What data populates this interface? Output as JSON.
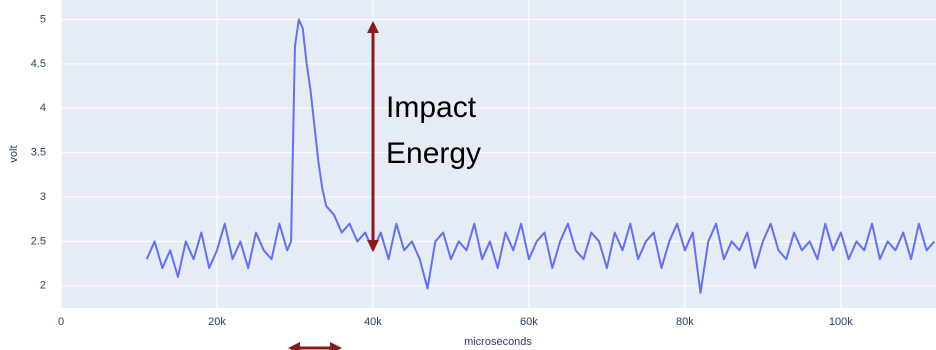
{
  "chart_data": {
    "type": "line",
    "xlabel": "microseconds",
    "ylabel": "volt",
    "annotation_lines": [
      "Impact",
      "Energy"
    ],
    "x": [
      11000,
      12000,
      13000,
      14000,
      15000,
      16000,
      17000,
      18000,
      19000,
      20000,
      21000,
      22000,
      23000,
      24000,
      25000,
      26000,
      27000,
      28000,
      29000,
      29500,
      30000,
      30500,
      31000,
      31500,
      32000,
      32500,
      33000,
      33500,
      34000,
      35000,
      36000,
      37000,
      38000,
      39000,
      40000,
      41000,
      42000,
      43000,
      44000,
      45000,
      46000,
      47000,
      48000,
      49000,
      50000,
      51000,
      52000,
      53000,
      54000,
      55000,
      56000,
      57000,
      58000,
      59000,
      60000,
      61000,
      62000,
      63000,
      64000,
      65000,
      66000,
      67000,
      68000,
      69000,
      70000,
      71000,
      72000,
      73000,
      74000,
      75000,
      76000,
      77000,
      78000,
      79000,
      80000,
      81000,
      82000,
      83000,
      84000,
      85000,
      86000,
      87000,
      88000,
      89000,
      90000,
      91000,
      92000,
      93000,
      94000,
      95000,
      96000,
      97000,
      98000,
      99000,
      100000,
      101000,
      102000,
      103000,
      104000,
      105000,
      106000,
      107000,
      108000,
      109000,
      110000,
      111000,
      112000
    ],
    "series": [
      {
        "color": "#636efa",
        "values": [
          2.3,
          2.5,
          2.2,
          2.4,
          2.1,
          2.5,
          2.3,
          2.6,
          2.2,
          2.4,
          2.7,
          2.3,
          2.5,
          2.2,
          2.6,
          2.4,
          2.3,
          2.7,
          2.4,
          2.5,
          4.7,
          5.0,
          4.9,
          4.5,
          4.2,
          3.8,
          3.4,
          3.1,
          2.9,
          2.8,
          2.6,
          2.7,
          2.5,
          2.6,
          2.4,
          2.6,
          2.3,
          2.7,
          2.4,
          2.5,
          2.3,
          1.97,
          2.5,
          2.6,
          2.3,
          2.5,
          2.4,
          2.7,
          2.3,
          2.5,
          2.2,
          2.6,
          2.4,
          2.7,
          2.3,
          2.5,
          2.6,
          2.2,
          2.5,
          2.7,
          2.4,
          2.3,
          2.6,
          2.5,
          2.2,
          2.6,
          2.4,
          2.7,
          2.3,
          2.5,
          2.6,
          2.2,
          2.5,
          2.7,
          2.4,
          2.6,
          1.92,
          2.5,
          2.7,
          2.3,
          2.5,
          2.4,
          2.6,
          2.2,
          2.5,
          2.7,
          2.4,
          2.3,
          2.6,
          2.4,
          2.5,
          2.3,
          2.7,
          2.4,
          2.6,
          2.3,
          2.5,
          2.4,
          2.7,
          2.3,
          2.5,
          2.4,
          2.6,
          2.3,
          2.7,
          2.4,
          2.5
        ]
      }
    ],
    "xlim": [
      0,
      112200
    ],
    "ylim": [
      1.75,
      5.22
    ],
    "xticks": [
      0,
      {
        "value": 20000,
        "label": "20k"
      },
      {
        "value": 40000,
        "label": "40k"
      },
      {
        "value": 60000,
        "label": "60k"
      },
      {
        "value": 80000,
        "label": "80k"
      },
      {
        "value": 100000,
        "label": "100k"
      }
    ],
    "yticks": [
      2,
      2.5,
      3,
      3.5,
      4,
      4.5,
      5
    ],
    "grid": true,
    "background": "#e5ecf6"
  }
}
